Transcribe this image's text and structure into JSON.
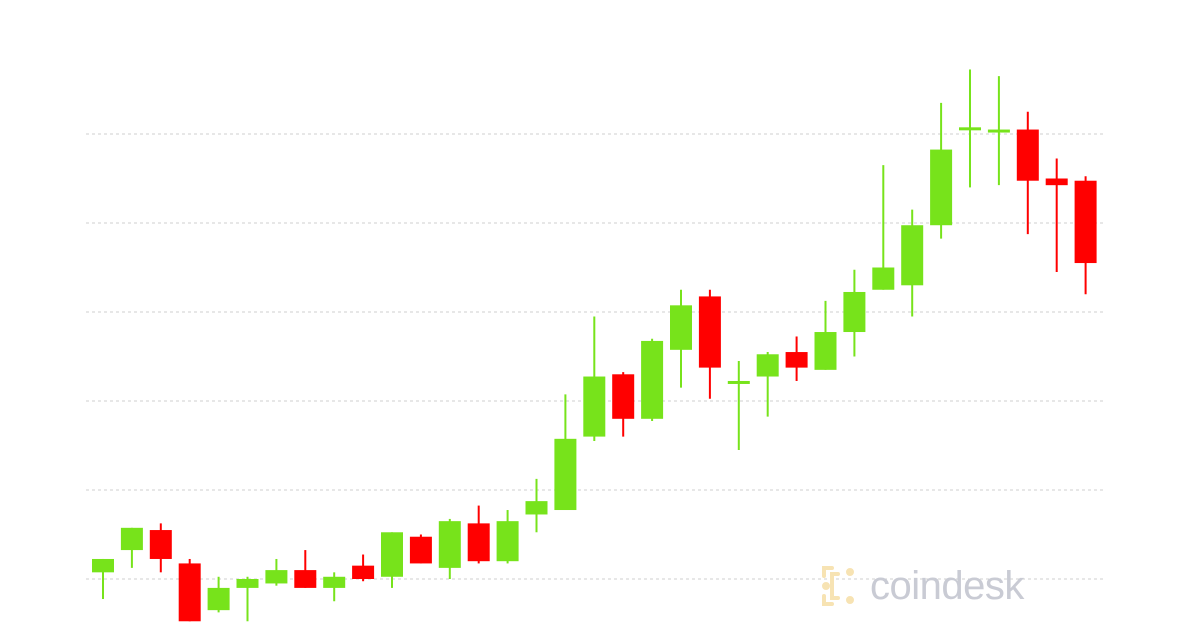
{
  "chart_data": {
    "type": "candlestick",
    "title": "",
    "xlabel": "",
    "ylabel": "",
    "ylim": [
      0,
      100
    ],
    "grid": true,
    "gridlines": [
      20,
      40,
      60,
      80,
      100
    ],
    "colors": {
      "up": "#77e31b",
      "down": "#ff0000",
      "grid": "#cfcfcf"
    },
    "candles": [
      {
        "o": 1.5,
        "h": 4.5,
        "l": -4.5,
        "c": 4.5
      },
      {
        "o": 6.5,
        "h": 11.5,
        "l": 2.5,
        "c": 11.5
      },
      {
        "o": 11,
        "h": 12.5,
        "l": 1.5,
        "c": 4.5
      },
      {
        "o": 3.5,
        "h": 4.5,
        "l": -9.5,
        "c": -9.5
      },
      {
        "o": -7,
        "h": 0.5,
        "l": -7.5,
        "c": -2
      },
      {
        "o": -2,
        "h": 0.5,
        "l": -9.5,
        "c": 0
      },
      {
        "o": -1,
        "h": 4.5,
        "l": -1.5,
        "c": 2
      },
      {
        "o": 2,
        "h": 6.5,
        "l": -2,
        "c": -2
      },
      {
        "o": -2,
        "h": 1.5,
        "l": -5,
        "c": 0.5
      },
      {
        "o": 3,
        "h": 5.5,
        "l": -0.5,
        "c": 0
      },
      {
        "o": 0.5,
        "h": 10.5,
        "l": -2,
        "c": 10.5
      },
      {
        "o": 9.5,
        "h": 10,
        "l": 3.5,
        "c": 3.5
      },
      {
        "o": 2.5,
        "h": 13.5,
        "l": 0,
        "c": 13
      },
      {
        "o": 12.5,
        "h": 16.5,
        "l": 3.5,
        "c": 4
      },
      {
        "o": 4,
        "h": 15.5,
        "l": 3.5,
        "c": 13
      },
      {
        "o": 14.5,
        "h": 22.5,
        "l": 10.5,
        "c": 17.5
      },
      {
        "o": 15.5,
        "h": 41.5,
        "l": 15.5,
        "c": 31.5
      },
      {
        "o": 32,
        "h": 59,
        "l": 31,
        "c": 45.5
      },
      {
        "o": 46,
        "h": 46.5,
        "l": 32,
        "c": 36
      },
      {
        "o": 36,
        "h": 54,
        "l": 35.5,
        "c": 53.5
      },
      {
        "o": 51.5,
        "h": 65,
        "l": 43,
        "c": 61.5
      },
      {
        "o": 63.5,
        "h": 65,
        "l": 40.5,
        "c": 47.5
      },
      {
        "o": 44.5,
        "h": 49,
        "l": 29,
        "c": 44.5
      },
      {
        "o": 45.5,
        "h": 51,
        "l": 36.5,
        "c": 50.5
      },
      {
        "o": 51,
        "h": 54.5,
        "l": 44.5,
        "c": 47.5
      },
      {
        "o": 47,
        "h": 62.5,
        "l": 47,
        "c": 55.5
      },
      {
        "o": 55.5,
        "h": 69.5,
        "l": 50,
        "c": 64.5
      },
      {
        "o": 65,
        "h": 93,
        "l": 65,
        "c": 70
      },
      {
        "o": 66,
        "h": 83,
        "l": 59,
        "c": 79.5
      },
      {
        "o": 79.5,
        "h": 107,
        "l": 76.5,
        "c": 96.5
      },
      {
        "o": 101,
        "h": 114.5,
        "l": 88,
        "c": 101.5
      },
      {
        "o": 100.5,
        "h": 113,
        "l": 88.5,
        "c": 101
      },
      {
        "o": 101,
        "h": 105,
        "l": 77.5,
        "c": 89.5
      },
      {
        "o": 90,
        "h": 94.5,
        "l": 69,
        "c": 88.5
      },
      {
        "o": 89.5,
        "h": 90.5,
        "l": 64,
        "c": 71
      }
    ]
  },
  "watermark": {
    "text": "coindesk",
    "logo_icon": "coindesk-bracket-logo",
    "color": "#c9cbd4",
    "logo_color": "#f7e3b3"
  }
}
